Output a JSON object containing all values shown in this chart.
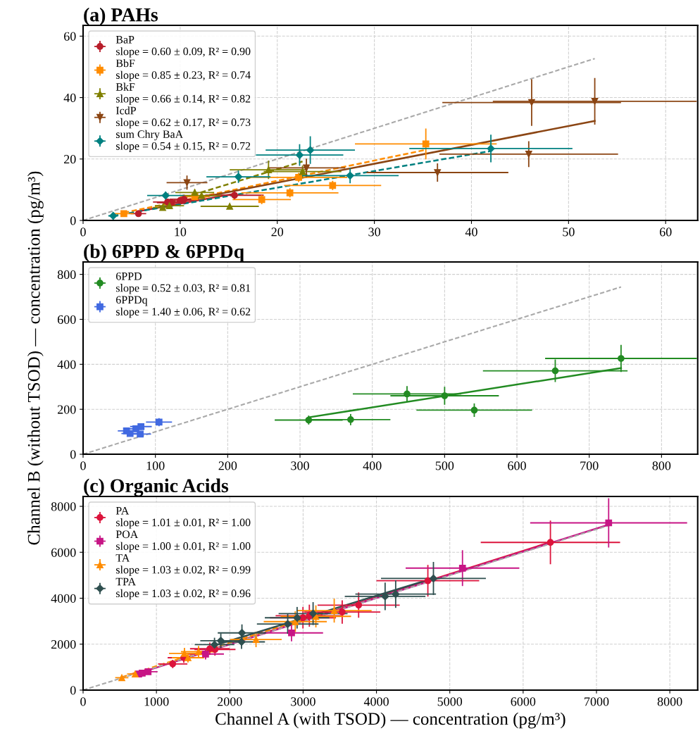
{
  "chart_data": [
    {
      "type": "scatter",
      "title": "(a) PAHs",
      "xlim": [
        0,
        63.3
      ],
      "ylim": [
        0,
        63.5
      ],
      "xticks": [
        0,
        10,
        20,
        30,
        40,
        50,
        60
      ],
      "yticks": [
        0,
        20,
        40,
        60
      ],
      "grid": true,
      "legend": "top left",
      "series": [
        {
          "name": "BaP\nslope = 0.60 ± 0.09, R² = 0.90",
          "color": "#b81d2a",
          "marker": "circle",
          "x": [
            5.7,
            8.7,
            9.1,
            10.0,
            10.4,
            15.6
          ],
          "values": [
            2.2,
            6.0,
            5.8,
            6.5,
            6.9,
            8.2
          ],
          "xerrors": [
            0.8,
            1.5,
            1.5,
            1.5,
            1.5,
            3.0
          ],
          "errors": [
            0.5,
            1,
            1,
            1,
            1.5,
            1.5
          ]
        },
        {
          "name": "BbF\nslope = 0.85 ± 0.23, R² = 0.74",
          "color": "#ff8c00",
          "marker": "square",
          "x": [
            4.2,
            11.5,
            18.4,
            21.3,
            25.7,
            22.2,
            35.3
          ],
          "values": [
            2.2,
            7.7,
            6.8,
            9.0,
            11.4,
            14.0,
            24.9
          ],
          "xerrors": [
            1,
            1.5,
            3,
            5,
            5,
            5,
            7.3
          ],
          "errors": [
            0.5,
            1,
            1.5,
            1.5,
            1.5,
            1.5,
            5
          ]
        },
        {
          "name": "BkF\nslope = 0.66 ± 0.14, R² = 0.82",
          "color": "#808000",
          "marker": "triangle",
          "x": [
            8.2,
            8.9,
            11.5,
            12.2,
            15.1,
            19.1,
            22.6
          ],
          "values": [
            4.2,
            4.8,
            9.1,
            8.1,
            4.6,
            16.5,
            15.9
          ],
          "xerrors": [
            1,
            1.5,
            2,
            2,
            3,
            4,
            4
          ],
          "errors": [
            0.5,
            0.8,
            1,
            1,
            0.6,
            3,
            2
          ]
        },
        {
          "name": "IcdP\nslope = 0.62 ± 0.17, R² = 0.73",
          "color": "#8b4513",
          "marker": "triangle_down",
          "x": [
            10.7,
            23.0,
            36.5,
            45.9,
            46.2,
            52.7
          ],
          "values": [
            12.3,
            17.1,
            15.6,
            21.6,
            38.4,
            38.8
          ],
          "xerrors": [
            2.1,
            4,
            7.3,
            9.2,
            9.2,
            10.5
          ],
          "errors": [
            2.3,
            3,
            3,
            4.2,
            7.6,
            7.6
          ]
        },
        {
          "name": "sum Chry BaA\nslope = 0.54 ± 0.15, R² = 0.72",
          "color": "#008080",
          "marker": "diamond",
          "x": [
            3.1,
            8.5,
            16.0,
            22.3,
            23.4,
            27.5,
            42.0
          ],
          "values": [
            1.5,
            8.1,
            14.2,
            21.3,
            22.9,
            14.6,
            23.4
          ],
          "xerrors": [
            0.5,
            1.9,
            3.3,
            4.5,
            4.6,
            5.0,
            8.4
          ],
          "errors": [
            0.5,
            1.3,
            2,
            3.5,
            4.5,
            2.5,
            4.5
          ]
        },
        {
          "type": "line",
          "color": "#b81d2a",
          "line_style": "solid",
          "x": [
            5.7,
            15.6
          ],
          "values": [
            3.0,
            8.7
          ]
        },
        {
          "type": "line",
          "color": "#ff8c00",
          "line_style": "dashed",
          "x": [
            4.2,
            35.3
          ],
          "values": [
            2.5,
            23.0
          ]
        },
        {
          "type": "line",
          "color": "#808000",
          "line_style": "dashed",
          "x": [
            8.2,
            22.6
          ],
          "values": [
            5.3,
            19.2
          ]
        },
        {
          "type": "line",
          "color": "#8b4513",
          "line_style": "solid",
          "x": [
            10.7,
            52.7
          ],
          "values": [
            6.6,
            32.4
          ]
        },
        {
          "type": "line",
          "color": "#008080",
          "line_style": "dashed",
          "x": [
            3.1,
            42.0
          ],
          "values": [
            1.5,
            22.6
          ]
        },
        {
          "type": "line",
          "color": "#a9a9a9",
          "line_style": "dashed",
          "x": [
            0,
            52.7
          ],
          "values": [
            0,
            52.7
          ]
        }
      ]
    },
    {
      "type": "scatter",
      "title": "(b) 6PPD & 6PPDq",
      "ylabel": "Channel B (without TSOD) — concentration (pg/m³)",
      "xlim": [
        0,
        850
      ],
      "ylim": [
        0,
        855
      ],
      "xticks": [
        0,
        100,
        200,
        300,
        400,
        500,
        600,
        700,
        800
      ],
      "yticks": [
        0,
        200,
        400,
        600,
        800
      ],
      "grid": true,
      "legend": "top left",
      "series": [
        {
          "name": "6PPD\nslope = 0.52 ± 0.03, R² = 0.81",
          "color": "#228b22",
          "marker": "circle",
          "x": [
            312,
            370,
            448,
            500,
            541,
            653,
            744
          ],
          "values": [
            152,
            154,
            268,
            260,
            196,
            371,
            426
          ],
          "xerrors": [
            47,
            55,
            75,
            75,
            80,
            100,
            105
          ],
          "errors": [
            20,
            25,
            35,
            40,
            30,
            50,
            60
          ]
        },
        {
          "name": "6PPDq\nslope = 1.40 ± 0.06, R² = 0.62",
          "color": "#4169e1",
          "marker": "square",
          "x": [
            60,
            65,
            73,
            80,
            79,
            105
          ],
          "values": [
            104,
            92,
            113,
            123,
            90,
            143
          ],
          "xerrors": [
            12,
            12,
            12,
            15,
            15,
            18
          ],
          "errors": [
            12,
            12,
            12,
            15,
            12,
            18
          ]
        },
        {
          "type": "line",
          "color": "#228b22",
          "line_style": "solid",
          "x": [
            312,
            744
          ],
          "values": [
            164,
            383
          ]
        },
        {
          "type": "line",
          "color": "#a9a9a9",
          "line_style": "dashed",
          "x": [
            0,
            744
          ],
          "values": [
            0,
            744
          ]
        }
      ]
    },
    {
      "type": "scatter",
      "title": "(c) Organic Acids",
      "xlabel": "Channel A (with TSOD) — concentration (pg/m³)",
      "xlim": [
        0,
        8380
      ],
      "ylim": [
        0,
        8430
      ],
      "xticks": [
        0,
        1000,
        2000,
        3000,
        4000,
        5000,
        6000,
        7000,
        8000
      ],
      "yticks": [
        0,
        2000,
        4000,
        6000,
        8000
      ],
      "grid": true,
      "legend": "top left",
      "series": [
        {
          "name": "PA\nslope = 1.01 ± 0.01, R² = 1.00",
          "color": "#dc143c",
          "marker": "circle",
          "x": [
            1222,
            1373,
            1728,
            1798,
            2998,
            3085,
            3533,
            3757,
            4701,
            6372
          ],
          "values": [
            1140,
            1410,
            1800,
            1770,
            3150,
            3240,
            3400,
            3700,
            4760,
            6430
          ],
          "xerrors": [
            200,
            220,
            270,
            280,
            450,
            460,
            520,
            560,
            700,
            950
          ],
          "errors": [
            180,
            220,
            270,
            270,
            470,
            480,
            510,
            550,
            690,
            950
          ]
        },
        {
          "name": "POA\nslope = 1.00 ± 0.01, R² = 1.00",
          "color": "#c71585",
          "marker": "square",
          "x": [
            758,
            806,
            886,
            1670,
            2842,
            5173,
            7166
          ],
          "values": [
            700,
            740,
            800,
            1570,
            2490,
            5310,
            7280
          ],
          "xerrors": [
            120,
            120,
            130,
            250,
            430,
            775,
            1070
          ],
          "errors": [
            110,
            110,
            120,
            240,
            370,
            780,
            1070
          ]
        },
        {
          "name": "TA\nslope = 1.03 ± 0.02, R² = 0.99",
          "color": "#ff8c00",
          "marker": "triangle",
          "x": [
            528,
            710,
            1382,
            1430,
            1574,
            2358,
            2893,
            3174,
            3424
          ],
          "values": [
            540,
            700,
            1600,
            1410,
            1670,
            2200,
            2980,
            3210,
            3460
          ],
          "xerrors": [
            90,
            110,
            210,
            220,
            240,
            350,
            430,
            480,
            510
          ],
          "errors": [
            80,
            100,
            240,
            210,
            250,
            330,
            450,
            480,
            520
          ]
        },
        {
          "name": "TPA\nslope = 1.03 ± 0.02, R² = 0.96",
          "color": "#2f4f4f",
          "marker": "diamond",
          "x": [
            1792,
            1878,
            2166,
            2160,
            2790,
            2918,
            3136,
            4118,
            4262,
            4777
          ],
          "values": [
            1980,
            2150,
            2490,
            2100,
            2880,
            3150,
            3330,
            4080,
            4180,
            4860
          ],
          "xerrors": [
            270,
            280,
            330,
            320,
            420,
            440,
            470,
            550,
            550,
            715
          ],
          "errors": [
            300,
            320,
            370,
            310,
            430,
            470,
            500,
            600,
            600,
            720
          ]
        },
        {
          "type": "line",
          "color": "#dc143c",
          "line_style": "solid",
          "x": [
            1222,
            6372
          ],
          "values": [
            1230,
            6440
          ]
        },
        {
          "type": "line",
          "color": "#c71585",
          "line_style": "solid",
          "x": [
            758,
            7166
          ],
          "values": [
            740,
            7200
          ]
        },
        {
          "type": "line",
          "color": "#ff8c00",
          "line_style": "dashed",
          "x": [
            528,
            3424
          ],
          "values": [
            560,
            3520
          ]
        },
        {
          "type": "line",
          "color": "#2f4f4f",
          "line_style": "solid",
          "x": [
            1792,
            4777
          ],
          "values": [
            1950,
            4870
          ]
        },
        {
          "type": "line",
          "color": "#a9a9a9",
          "line_style": "dashed",
          "x": [
            0,
            7200
          ],
          "values": [
            0,
            7200
          ]
        }
      ]
    }
  ]
}
